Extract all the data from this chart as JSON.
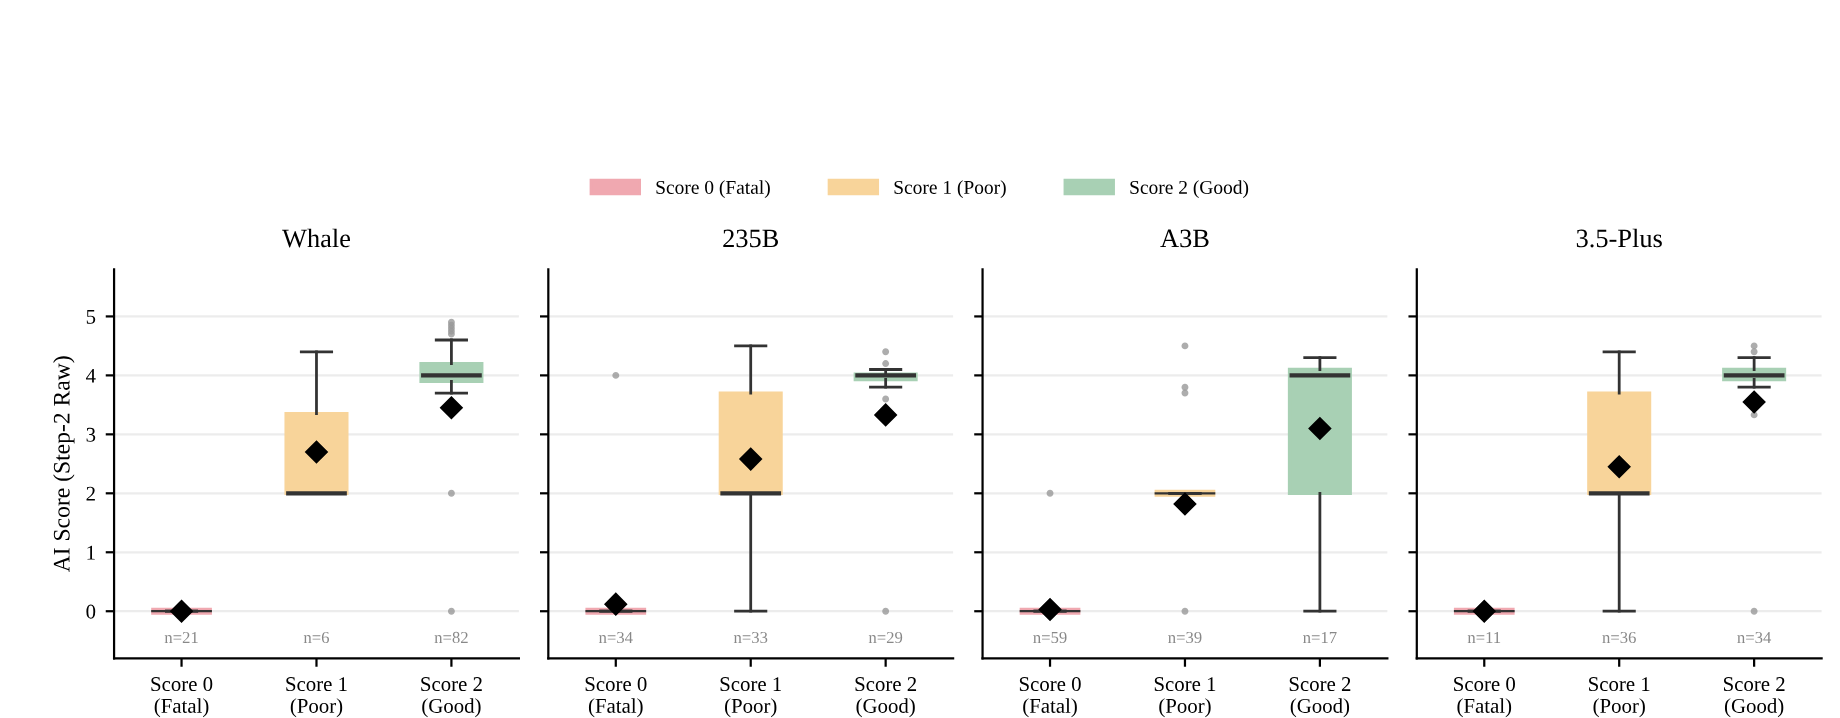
{
  "chart_data": [
    {
      "type": "box",
      "title": "Whale",
      "ylabel": "AI Score (Step-2 Raw)",
      "categories": [
        "Score 0\n(Fatal)",
        "Score 1\n(Poor)",
        "Score 2\n(Good)"
      ],
      "ylim": [
        -0.8,
        5.8
      ],
      "yticks": [
        0,
        1,
        2,
        3,
        4,
        5
      ],
      "grid": "y",
      "legend": "top",
      "marker": "diamond",
      "series": [
        {
          "name": "Score 0 (Fatal)",
          "color": "#f0a8b0",
          "boxes": [
            {
              "low": 0,
              "q1": 0,
              "median": 0,
              "q3": 0,
              "high": 0,
              "mean": 0
            },
            null,
            null
          ]
        },
        {
          "name": "Score 1 (Poor)",
          "color": "#f8d49a",
          "boxes": [
            null,
            {
              "low": 2,
              "q1": 2,
              "median": 2,
              "q3": 3.35,
              "high": 4.4,
              "mean": 2.7
            },
            null
          ]
        },
        {
          "name": "Score 2 (Good)",
          "color": "#a8d0b4",
          "boxes": [
            null,
            null,
            {
              "low": 3.7,
              "q1": 3.9,
              "median": 4.0,
              "q3": 4.2,
              "high": 4.6,
              "mean": 3.45,
              "outliers": [
                4.7,
                4.75,
                4.8,
                4.85,
                4.9,
                2,
                0
              ]
            }
          ]
        }
      ],
      "annotations": [
        "n=21",
        "n=6",
        "n=82"
      ]
    },
    {
      "type": "box",
      "title": "235B",
      "categories": [
        "Score 0\n(Fatal)",
        "Score 1\n(Poor)",
        "Score 2\n(Good)"
      ],
      "ylim": [
        -0.8,
        5.8
      ],
      "yticks": [
        0,
        1,
        2,
        3,
        4,
        5
      ],
      "grid": "y",
      "tick_labels": "x",
      "marker": "diamond",
      "series": [
        {
          "color": "#f0a8b0",
          "boxes": [
            {
              "low": 0,
              "q1": 0,
              "median": 0,
              "q3": 0,
              "high": 0,
              "mean": 0.12,
              "outliers": [
                4
              ]
            },
            null,
            null
          ]
        },
        {
          "color": "#f8d49a",
          "boxes": [
            null,
            {
              "low": 0,
              "q1": 2,
              "median": 2,
              "q3": 3.7,
              "high": 4.5,
              "mean": 2.58
            },
            null
          ]
        },
        {
          "color": "#a8d0b4",
          "boxes": [
            null,
            null,
            {
              "low": 3.8,
              "q1": 3.93,
              "median": 4.0,
              "q3": 4.02,
              "high": 4.1,
              "mean": 3.33,
              "outliers": [
                4.4,
                4.2,
                3.6,
                0
              ]
            }
          ]
        }
      ],
      "annotations": [
        "n=34",
        "n=33",
        "n=29"
      ]
    },
    {
      "type": "box",
      "title": "A3B",
      "categories": [
        "Score 0\n(Fatal)",
        "Score 1\n(Poor)",
        "Score 2\n(Good)"
      ],
      "ylim": [
        -0.8,
        5.8
      ],
      "yticks": [
        0,
        1,
        2,
        3,
        4,
        5
      ],
      "grid": "y",
      "tick_labels": "x",
      "marker": "diamond",
      "series": [
        {
          "color": "#f0a8b0",
          "boxes": [
            {
              "low": 0,
              "q1": 0,
              "median": 0,
              "q3": 0,
              "high": 0,
              "mean": 0.03,
              "outliers": [
                2
              ]
            },
            null,
            null
          ]
        },
        {
          "color": "#f8d49a",
          "boxes": [
            null,
            {
              "low": 2,
              "q1": 2,
              "median": 2,
              "q3": 2,
              "high": 2,
              "mean": 1.82,
              "outliers": [
                4.5,
                3.8,
                3.7,
                0
              ]
            },
            null
          ]
        },
        {
          "color": "#a8d0b4",
          "boxes": [
            null,
            null,
            {
              "low": 0,
              "q1": 2,
              "median": 4.0,
              "q3": 4.1,
              "high": 4.3,
              "mean": 3.1
            }
          ]
        }
      ],
      "annotations": [
        "n=59",
        "n=39",
        "n=17"
      ]
    },
    {
      "type": "box",
      "title": "3.5-Plus",
      "categories": [
        "Score 0\n(Fatal)",
        "Score 1\n(Poor)",
        "Score 2\n(Good)"
      ],
      "ylim": [
        -0.8,
        5.8
      ],
      "yticks": [
        0,
        1,
        2,
        3,
        4,
        5
      ],
      "grid": "y",
      "tick_labels": "x",
      "marker": "diamond",
      "series": [
        {
          "color": "#f0a8b0",
          "boxes": [
            {
              "low": 0,
              "q1": 0,
              "median": 0,
              "q3": 0,
              "high": 0,
              "mean": 0
            },
            null,
            null
          ]
        },
        {
          "color": "#f8d49a",
          "boxes": [
            null,
            {
              "low": 0,
              "q1": 2,
              "median": 2,
              "q3": 3.7,
              "high": 4.4,
              "mean": 2.45
            },
            null
          ]
        },
        {
          "color": "#a8d0b4",
          "boxes": [
            null,
            null,
            {
              "low": 3.8,
              "q1": 3.93,
              "median": 4.0,
              "q3": 4.1,
              "high": 4.3,
              "mean": 3.55,
              "outliers": [
                4.5,
                4.4,
                3.33,
                0
              ]
            }
          ]
        }
      ],
      "annotations": [
        "n=11",
        "n=36",
        "n=34"
      ]
    }
  ]
}
